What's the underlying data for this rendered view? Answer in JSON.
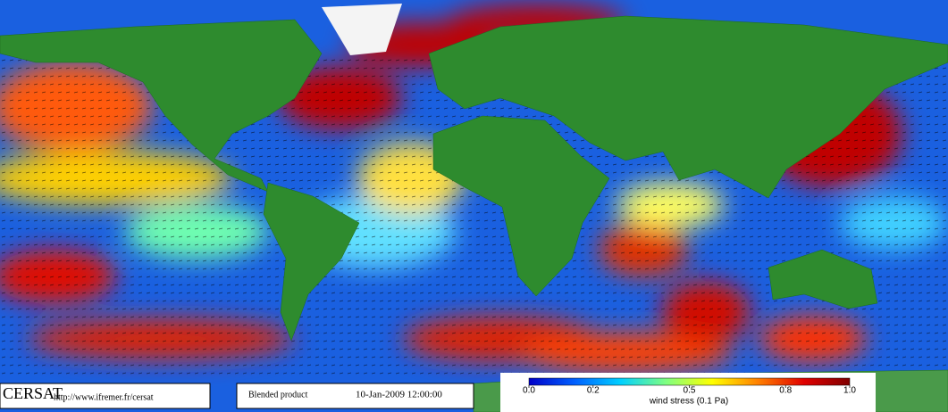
{
  "header": {
    "logo": "CERSAT",
    "url": "http://www.ifremer.fr/cersat",
    "product": "Blended product",
    "date": "10-Jan-2009 12:00:00"
  },
  "colorbar": {
    "label": "wind stress (0.1 Pa)",
    "range": [
      0,
      1
    ],
    "ticks": [
      {
        "value": 0,
        "label": "0.0"
      },
      0.2,
      0.5,
      0.8,
      {
        "value": 1,
        "label": "1.0"
      }
    ],
    "colors": [
      "#0000c8",
      "#0060ff",
      "#00d0ff",
      "#80ff80",
      "#ffff00",
      "#ff8000",
      "#e00000",
      "#800000"
    ]
  }
}
